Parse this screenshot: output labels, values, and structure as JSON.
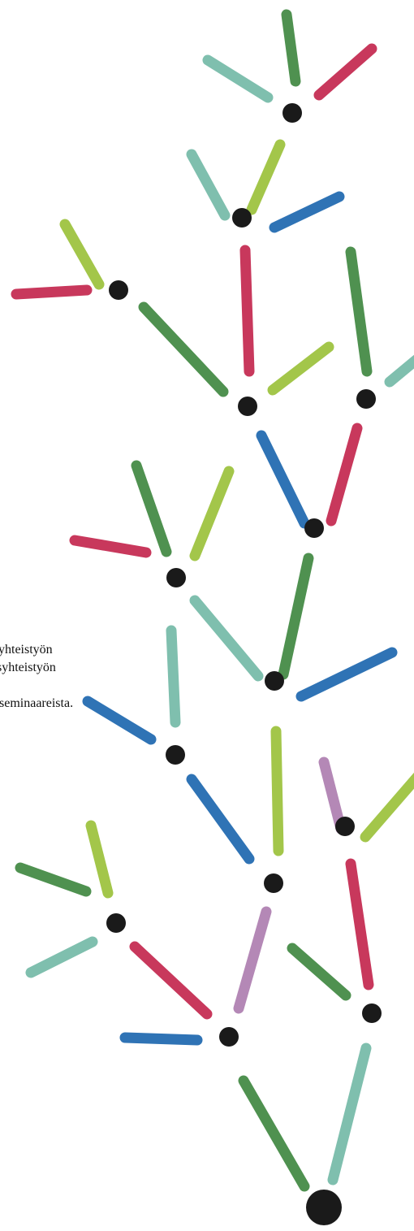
{
  "text_lines": [
    "yhteistyön",
    "syhteistyön",
    "seminaareista."
  ]
}
